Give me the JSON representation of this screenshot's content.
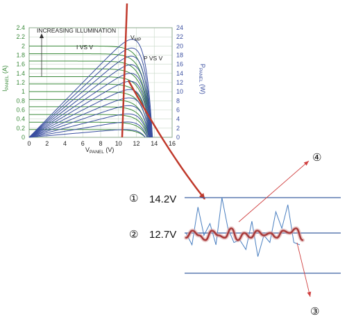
{
  "chart_data": [
    {
      "type": "line",
      "title": "",
      "xlabel": {
        "main": "V",
        "sub": "PANEL",
        "unit": " (V)"
      },
      "ylabel_left": {
        "main": "I",
        "sub": "PANEL",
        "unit": " (A)"
      },
      "ylabel_right": {
        "main": "P",
        "sub": "PANEL",
        "unit": " (W)"
      },
      "xlim": [
        0,
        16
      ],
      "ylim_left": [
        0,
        2.4
      ],
      "ylim_right": [
        0,
        24
      ],
      "x_ticks": [
        "0",
        "2",
        "4",
        "6",
        "8",
        "10",
        "12",
        "14",
        "16"
      ],
      "y_left_ticks": [
        "0",
        "0.2",
        "0.4",
        "0.6",
        "0.8",
        "1",
        "1.2",
        "1.4",
        "1.6",
        "1.8",
        "2",
        "2.2",
        "2.4"
      ],
      "y_right_ticks": [
        "0",
        "2",
        "4",
        "6",
        "8",
        "10",
        "12",
        "14",
        "16",
        "18",
        "20",
        "22",
        "24"
      ],
      "grid": true,
      "annotations": {
        "increasing": "INCREASING ILLUMINATION",
        "ivsv": "I VS V",
        "pvsv": "P VS V",
        "vmp_main": "V",
        "vmp_sub": "MP"
      },
      "iv_series": [
        {
          "isc": 2.0,
          "voc": 13.8
        },
        {
          "isc": 1.83,
          "voc": 13.75
        },
        {
          "isc": 1.67,
          "voc": 13.7
        },
        {
          "isc": 1.5,
          "voc": 13.65
        },
        {
          "isc": 1.33,
          "voc": 13.6
        },
        {
          "isc": 1.17,
          "voc": 13.55
        },
        {
          "isc": 1.0,
          "voc": 13.5
        },
        {
          "isc": 0.83,
          "voc": 13.45
        },
        {
          "isc": 0.67,
          "voc": 13.4
        },
        {
          "isc": 0.5,
          "voc": 13.3
        },
        {
          "isc": 0.33,
          "voc": 13.2
        },
        {
          "isc": 0.17,
          "voc": 13.0
        }
      ],
      "colors": {
        "iv": "#3a8a3a",
        "pv": "#3a4fa0",
        "grid": "#c8d8c8",
        "mpp_line": "#c0392b"
      }
    },
    {
      "type": "line",
      "title": "",
      "levels": [
        {
          "marker": "①",
          "label": "14.2V",
          "value": 14.2
        },
        {
          "marker": "②",
          "label": "12.7V",
          "value": 12.7
        }
      ],
      "callouts": {
        "up": "④",
        "down": "③"
      },
      "raw_signal": [
        12.7,
        12.2,
        13.8,
        12.6,
        13.1,
        12.2,
        14.2,
        12.9,
        12.3,
        12.4,
        12.0,
        13.2,
        11.7,
        12.6,
        12.3,
        13.6,
        12.9,
        13.9,
        12.3,
        12.2
      ],
      "smoothed": [
        12.5,
        12.8,
        12.6,
        12.4,
        12.8,
        12.6,
        12.5,
        12.9,
        12.4,
        12.7,
        12.5,
        12.8,
        12.6,
        12.7,
        12.5,
        12.8,
        12.7,
        12.9,
        12.4
      ],
      "colors": {
        "raw": "#4a7fc0",
        "smoothed": "#a83a3a",
        "callout": "#d04040",
        "level_line": "#3a5fa0"
      }
    }
  ]
}
